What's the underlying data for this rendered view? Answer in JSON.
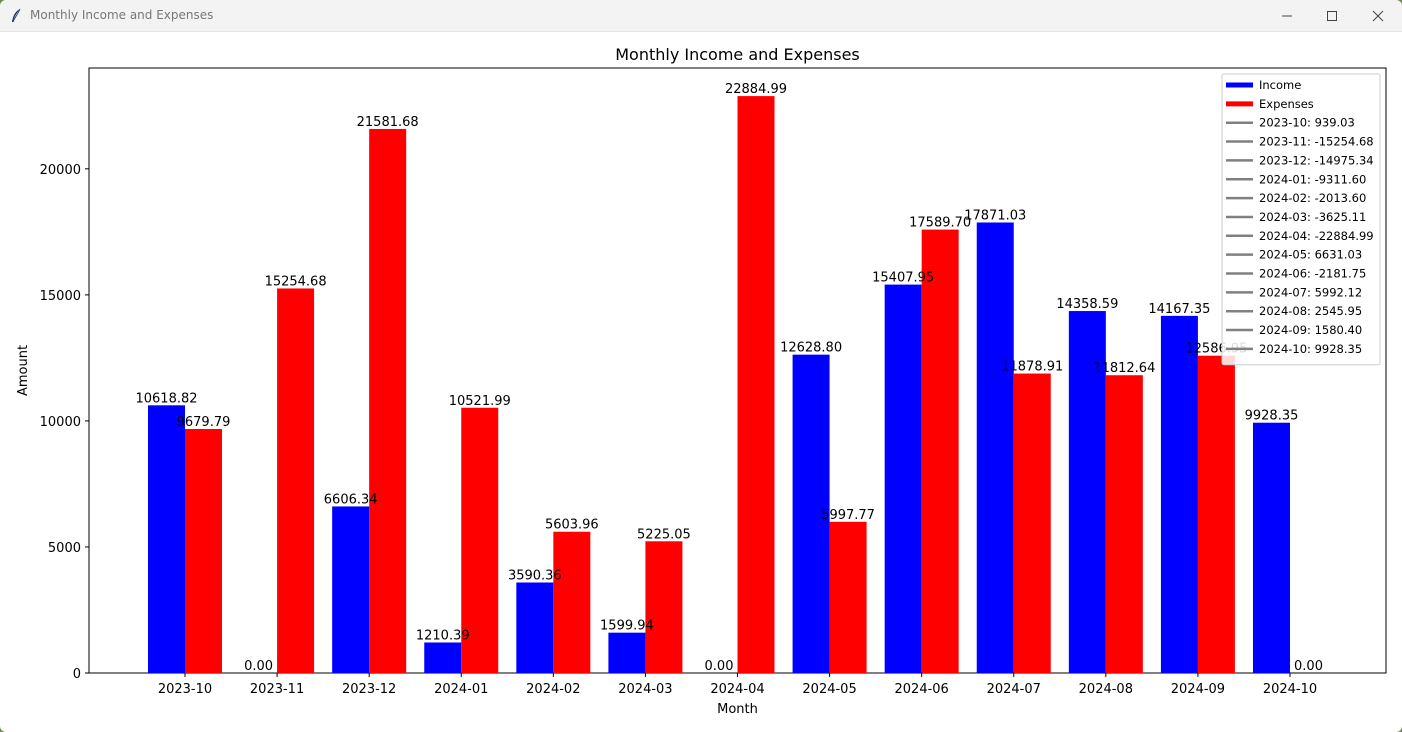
{
  "window": {
    "title": "Monthly Income and Expenses"
  },
  "colors": {
    "income": "#0000ff",
    "expenses": "#ff0000",
    "net": "#808080"
  },
  "chart_data": {
    "type": "bar",
    "title": "Monthly Income and Expenses",
    "xlabel": "Month",
    "ylabel": "Amount",
    "ylim": [
      0,
      24000
    ],
    "yticks": [
      0,
      5000,
      10000,
      15000,
      20000
    ],
    "grid": false,
    "legend_position": "top-right",
    "categories": [
      "2023-10",
      "2023-11",
      "2023-12",
      "2024-01",
      "2024-02",
      "2024-03",
      "2024-04",
      "2024-05",
      "2024-06",
      "2024-07",
      "2024-08",
      "2024-09",
      "2024-10"
    ],
    "series": [
      {
        "name": "Income",
        "color": "#0000ff",
        "values": [
          10618.82,
          0.0,
          6606.34,
          1210.39,
          3590.36,
          1599.94,
          0.0,
          12628.8,
          15407.95,
          17871.03,
          14358.59,
          14167.35,
          9928.35
        ],
        "labels": [
          "10618.82",
          "0.00",
          "6606.34",
          "1210.39",
          "3590.36",
          "1599.94",
          "0.00",
          "12628.80",
          "15407.95",
          "17871.03",
          "14358.59",
          "14167.35",
          "9928.35"
        ]
      },
      {
        "name": "Expenses",
        "color": "#ff0000",
        "values": [
          9679.79,
          15254.68,
          21581.68,
          10521.99,
          5603.96,
          5225.05,
          22884.99,
          5997.77,
          17589.7,
          11878.91,
          11812.64,
          12586.95,
          0.0
        ],
        "labels": [
          "9679.79",
          "15254.68",
          "21581.68",
          "10521.99",
          "5603.96",
          "5225.05",
          "22884.99",
          "5997.77",
          "17589.70",
          "11878.91",
          "11812.64",
          "12586.95",
          "0.00"
        ]
      }
    ],
    "net_legend_entries": [
      "2023-10: 939.03",
      "2023-11: -15254.68",
      "2023-12: -14975.34",
      "2024-01: -9311.60",
      "2024-02: -2013.60",
      "2024-03: -3625.11",
      "2024-04: -22884.99",
      "2024-05: 6631.03",
      "2024-06: -2181.75",
      "2024-07: 5992.12",
      "2024-08: 2545.95",
      "2024-09: 1580.40",
      "2024-10: 9928.35"
    ]
  }
}
